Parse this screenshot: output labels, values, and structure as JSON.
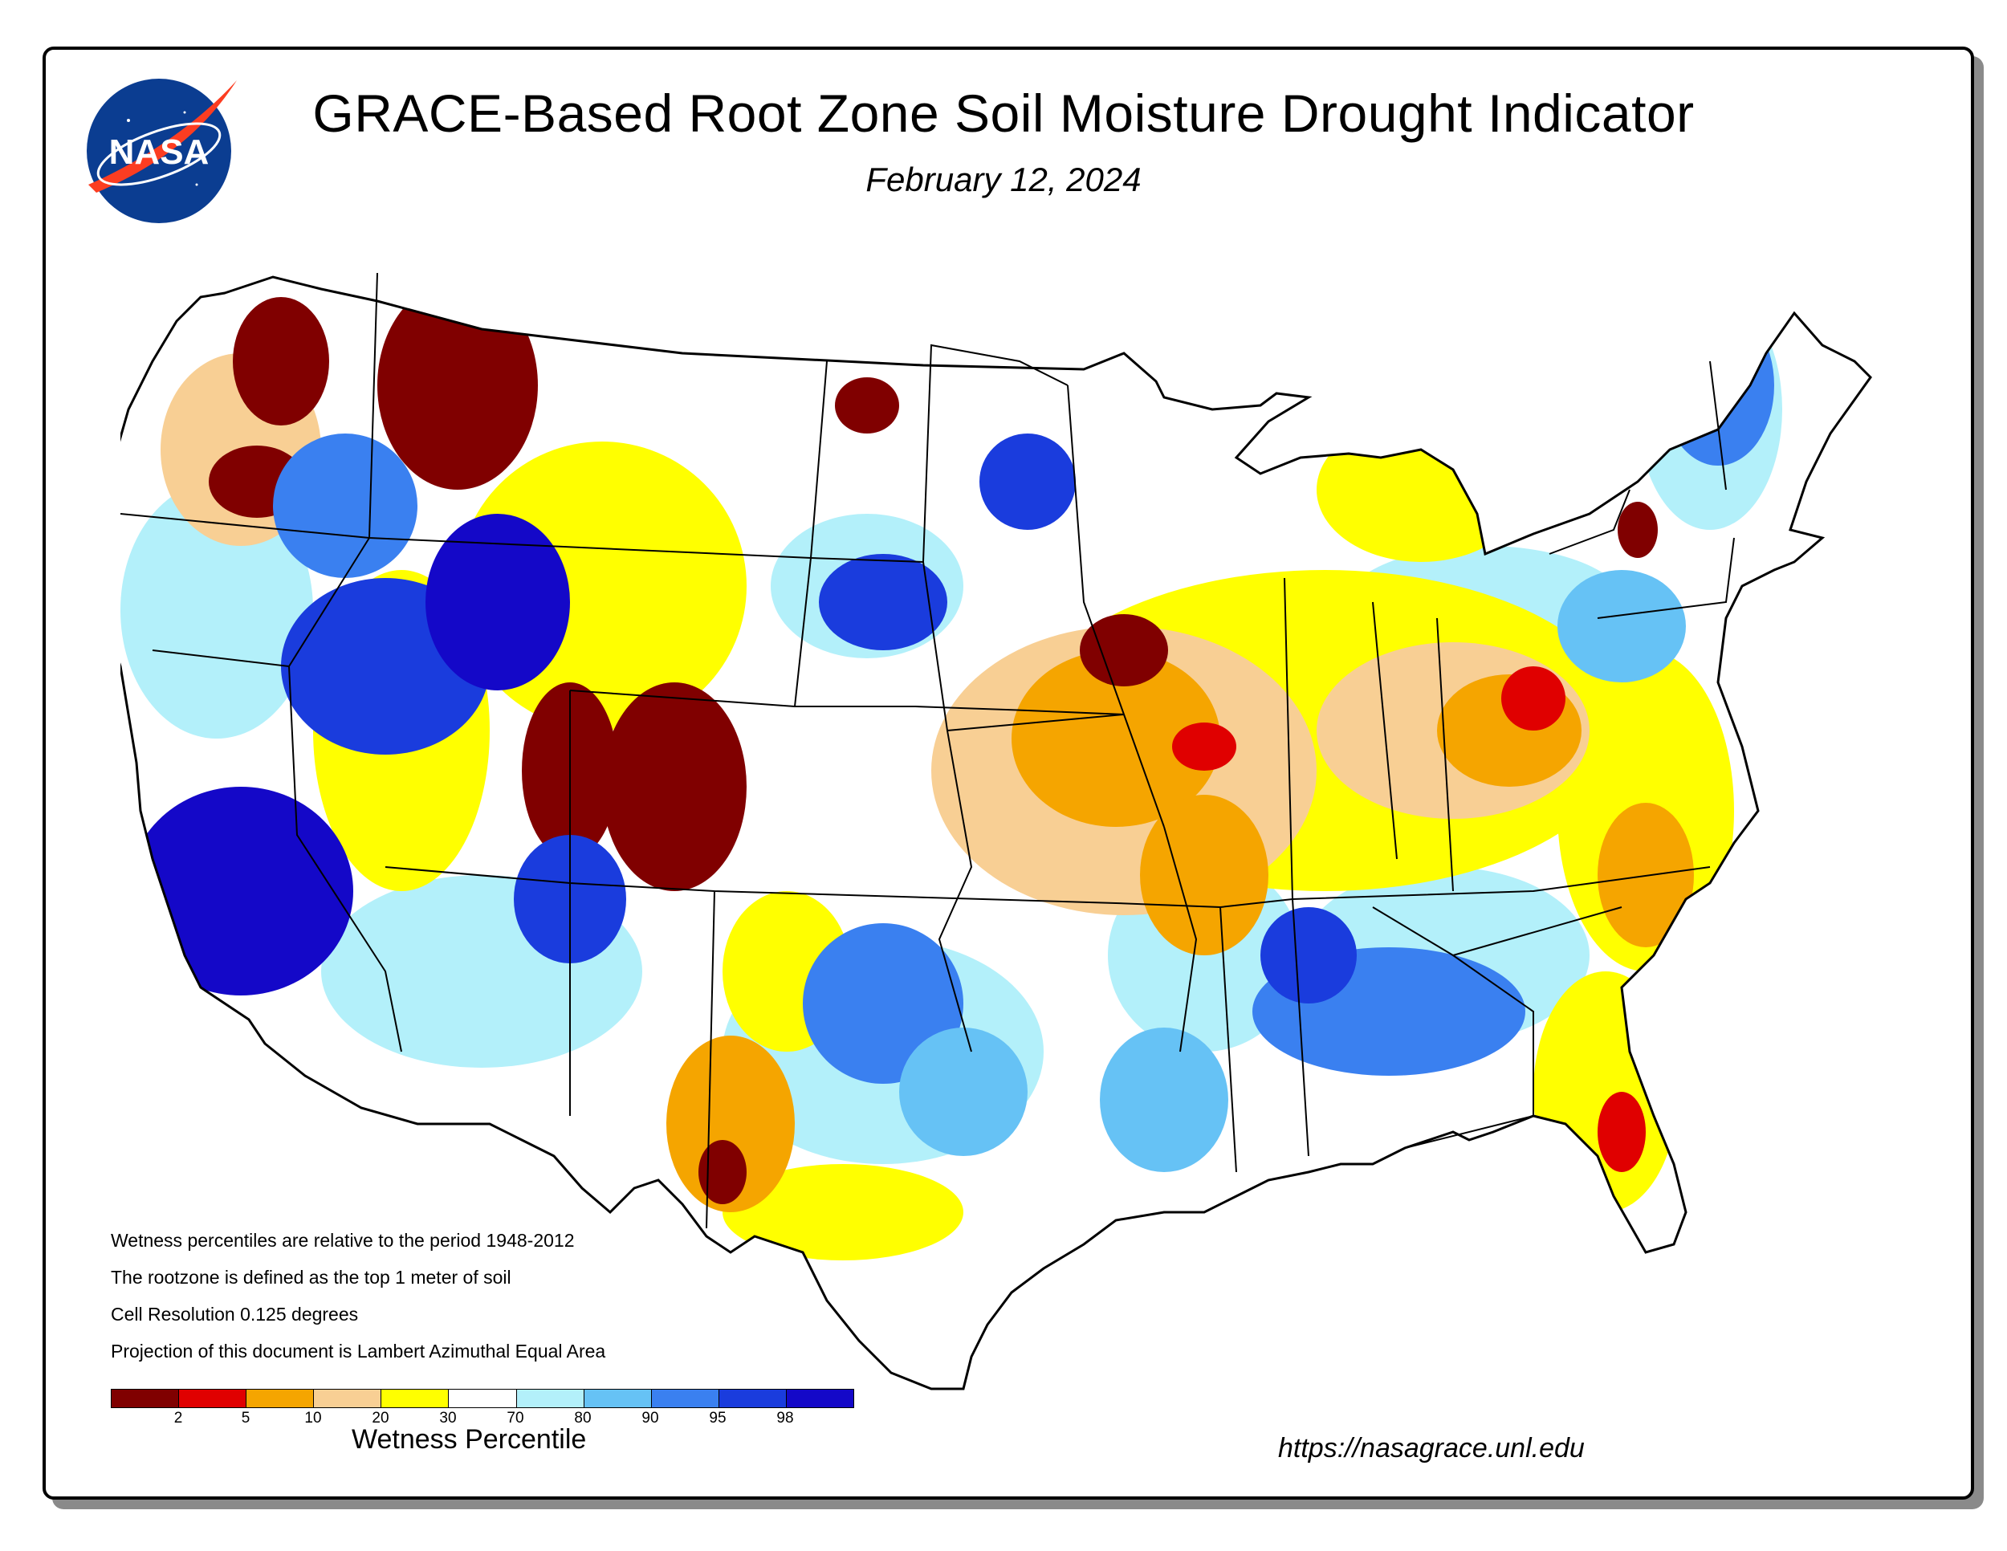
{
  "header": {
    "title": "GRACE-Based Root Zone Soil  Moisture Drought Indicator",
    "date": "February 12, 2024",
    "logo_text": "NASA"
  },
  "notes": [
    "Wetness percentiles are relative to the period 1948-2012",
    "The rootzone is defined as the top 1 meter of soil",
    "Cell Resolution 0.125 degrees",
    "Projection of this document is Lambert Azimuthal Equal Area"
  ],
  "legend": {
    "title": "Wetness Percentile",
    "colors": [
      "#800000",
      "#e00000",
      "#f5a500",
      "#f8cf94",
      "#ffff00",
      "#ffffff",
      "#b3f0fa",
      "#66c2f5",
      "#3a80f0",
      "#1a3cdd",
      "#1408c8"
    ],
    "ticks": [
      "2",
      "5",
      "10",
      "20",
      "30",
      "70",
      "80",
      "90",
      "95",
      "98"
    ]
  },
  "footer": {
    "url": "https://nasagrace.unl.edu"
  }
}
